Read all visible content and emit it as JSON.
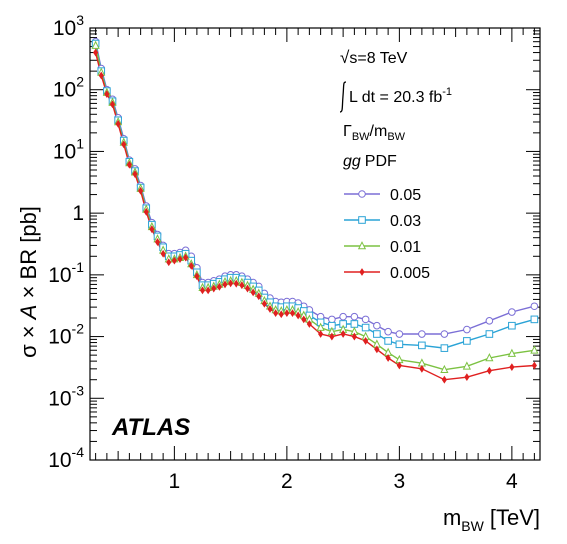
{
  "chart_data": {
    "type": "line",
    "ylabel_parts": [
      "σ",
      "×",
      "A",
      "×",
      "BR [pb]"
    ],
    "xlabel_main": "m",
    "xlabel_sub": "BW",
    "xlabel_unit": "[TeV]",
    "xlim": [
      0.25,
      4.25
    ],
    "ylim_log10": [
      -4,
      3
    ],
    "y_scale": "log",
    "x_ticks": [
      "1",
      "2",
      "3",
      "4"
    ],
    "y_tick_base": "10",
    "y_tick_exponents": [
      "-4",
      "-3",
      "-2",
      "-1",
      "",
      "",
      "",
      ""
    ],
    "y_tick_labels_plain": [
      "",
      "",
      "",
      "",
      "1",
      "10",
      "10",
      "10"
    ],
    "experiment": "ATLAS",
    "energy_label": "s=8 TeV",
    "lumi_label": "L dt = 20.3 fb",
    "lumi_exp": "-1",
    "width_label_main": "Γ",
    "width_label_sub1": "BW",
    "width_label_slash": "/m",
    "width_label_sub2": "BW",
    "pdf_label_it": "gg",
    "pdf_label": "PDF",
    "x": [
      0.3,
      0.35,
      0.4,
      0.45,
      0.5,
      0.55,
      0.6,
      0.65,
      0.7,
      0.75,
      0.8,
      0.85,
      0.9,
      0.95,
      1.0,
      1.05,
      1.1,
      1.15,
      1.2,
      1.25,
      1.3,
      1.35,
      1.4,
      1.45,
      1.5,
      1.55,
      1.6,
      1.65,
      1.7,
      1.75,
      1.8,
      1.85,
      1.9,
      1.95,
      2.0,
      2.05,
      2.1,
      2.15,
      2.2,
      2.3,
      2.4,
      2.5,
      2.6,
      2.7,
      2.8,
      2.9,
      3.0,
      3.2,
      3.4,
      3.6,
      3.8,
      4.0,
      4.2
    ],
    "series": [
      {
        "name": "0.05",
        "color": "#7b6fd6",
        "marker": "circle",
        "values": [
          600,
          220,
          100,
          70,
          35,
          16,
          7.2,
          5.2,
          2.8,
          1.3,
          0.7,
          0.45,
          0.3,
          0.22,
          0.22,
          0.23,
          0.25,
          0.2,
          0.13,
          0.075,
          0.075,
          0.08,
          0.085,
          0.095,
          0.1,
          0.1,
          0.095,
          0.085,
          0.075,
          0.065,
          0.05,
          0.042,
          0.037,
          0.036,
          0.037,
          0.037,
          0.035,
          0.031,
          0.027,
          0.021,
          0.019,
          0.021,
          0.021,
          0.019,
          0.015,
          0.012,
          0.011,
          0.011,
          0.011,
          0.013,
          0.018,
          0.025,
          0.031
        ]
      },
      {
        "name": "0.03",
        "color": "#2aa3d6",
        "marker": "square",
        "values": [
          560,
          200,
          95,
          65,
          32,
          15,
          6.8,
          4.8,
          2.6,
          1.2,
          0.65,
          0.42,
          0.28,
          0.2,
          0.2,
          0.21,
          0.22,
          0.17,
          0.11,
          0.068,
          0.068,
          0.072,
          0.077,
          0.085,
          0.09,
          0.09,
          0.085,
          0.075,
          0.065,
          0.056,
          0.043,
          0.036,
          0.031,
          0.03,
          0.031,
          0.031,
          0.029,
          0.026,
          0.022,
          0.017,
          0.015,
          0.016,
          0.016,
          0.014,
          0.011,
          0.0085,
          0.0075,
          0.0072,
          0.0065,
          0.0085,
          0.011,
          0.015,
          0.019
        ]
      },
      {
        "name": "0.01",
        "color": "#7cc242",
        "marker": "triangle",
        "values": [
          520,
          190,
          90,
          62,
          30,
          14,
          6.5,
          4.6,
          2.5,
          1.15,
          0.6,
          0.38,
          0.25,
          0.18,
          0.18,
          0.19,
          0.2,
          0.15,
          0.1,
          0.062,
          0.062,
          0.065,
          0.07,
          0.077,
          0.08,
          0.08,
          0.075,
          0.067,
          0.058,
          0.05,
          0.038,
          0.031,
          0.027,
          0.026,
          0.027,
          0.027,
          0.025,
          0.022,
          0.019,
          0.014,
          0.012,
          0.013,
          0.012,
          0.01,
          0.0075,
          0.0055,
          0.0042,
          0.0037,
          0.0029,
          0.0033,
          0.0045,
          0.0053,
          0.006
        ]
      },
      {
        "name": "0.005",
        "color": "#e02020",
        "marker": "diamond",
        "values": [
          400,
          170,
          85,
          58,
          28,
          13,
          6.1,
          4.3,
          2.3,
          1.05,
          0.55,
          0.34,
          0.22,
          0.16,
          0.17,
          0.18,
          0.19,
          0.14,
          0.095,
          0.056,
          0.056,
          0.06,
          0.064,
          0.07,
          0.073,
          0.072,
          0.068,
          0.06,
          0.052,
          0.045,
          0.034,
          0.028,
          0.024,
          0.023,
          0.024,
          0.024,
          0.022,
          0.019,
          0.016,
          0.011,
          0.01,
          0.011,
          0.01,
          0.0085,
          0.0062,
          0.0045,
          0.0034,
          0.003,
          0.002,
          0.0022,
          0.0028,
          0.0032,
          0.0034
        ]
      }
    ]
  }
}
